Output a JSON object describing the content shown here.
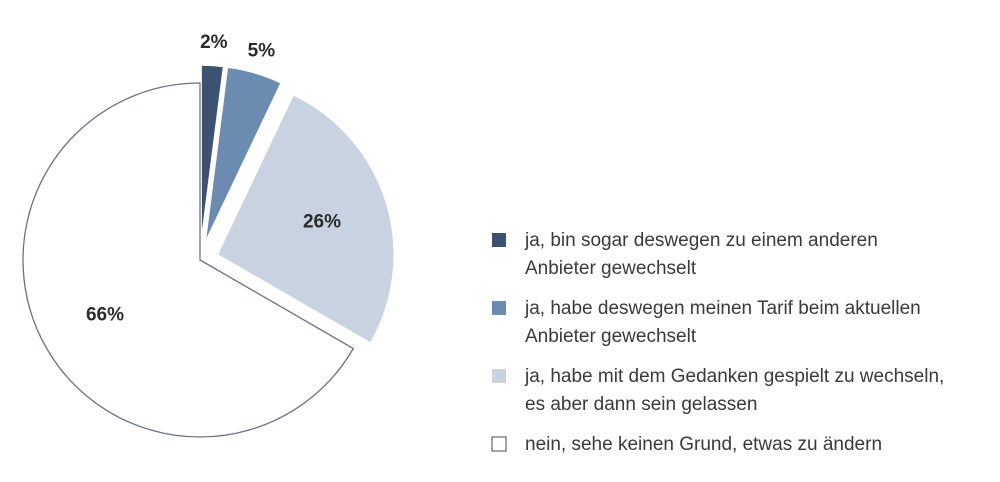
{
  "chart_data": {
    "type": "pie",
    "title": "",
    "legend_position": "right",
    "slices": [
      {
        "label": "ja, bin sogar deswegen zu einem anderen Anbieter gewechselt",
        "label_lines": [
          "ja, bin sogar deswegen zu einem anderen",
          "Anbieter gewechselt"
        ],
        "value": 2,
        "display": "2%",
        "color": "#3d5170",
        "exploded": true
      },
      {
        "label": "ja, habe deswegen meinen Tarif beim aktuellen Anbieter gewechselt",
        "label_lines": [
          "ja, habe deswegen meinen Tarif beim aktuellen",
          "Anbieter gewechselt"
        ],
        "value": 5,
        "display": "5%",
        "color": "#6c8bb0",
        "exploded": true
      },
      {
        "label": "ja, habe mit dem Gedanken gespielt zu wechseln, es aber dann sein gelassen",
        "label_lines": [
          "ja, habe mit dem Gedanken gespielt zu wechseln,",
          "es aber dann sein gelassen"
        ],
        "value": 26,
        "display": "26%",
        "color": "#c8d2e0",
        "exploded": true
      },
      {
        "label": "nein, sehe keinen Grund, etwas zu ändern",
        "label_lines": [
          "nein, sehe keinen Grund, etwas zu ändern"
        ],
        "value": 66,
        "display": "66%",
        "color": "#ffffff",
        "stroke": "#6a7385",
        "exploded": false
      }
    ]
  }
}
